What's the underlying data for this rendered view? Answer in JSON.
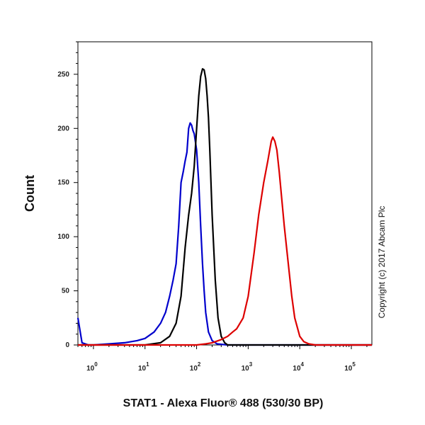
{
  "chart_data": {
    "type": "line",
    "title": "",
    "xlabel": "STAT1 - Alexa Fluor® 488 (530/30 BP)",
    "ylabel": "Count",
    "x_scale": "log",
    "xlim": [
      0.5,
      250000
    ],
    "ylim": [
      0,
      280
    ],
    "x_tick_labels": [
      {
        "base": "10",
        "exp": "0"
      },
      {
        "base": "10",
        "exp": "1"
      },
      {
        "base": "10",
        "exp": "2"
      },
      {
        "base": "10",
        "exp": "3"
      },
      {
        "base": "10",
        "exp": "4"
      },
      {
        "base": "10",
        "exp": "5"
      }
    ],
    "x_tick_values": [
      1,
      10,
      100,
      1000,
      10000,
      100000
    ],
    "y_ticks": [
      0,
      50,
      100,
      150,
      200,
      250
    ],
    "grid": false,
    "legend": "none",
    "series": [
      {
        "color": "#0000cc",
        "x": [
          0.5,
          0.6,
          0.8,
          1,
          2,
          4,
          7,
          10,
          15,
          20,
          25,
          30,
          35,
          40,
          45,
          50,
          55,
          60,
          65,
          70,
          75,
          80,
          85,
          90,
          100,
          110,
          120,
          130,
          140,
          150,
          170,
          200,
          250,
          400,
          1000,
          250000
        ],
        "y": [
          25,
          2,
          0,
          0,
          1,
          2,
          4,
          6,
          12,
          20,
          30,
          45,
          60,
          75,
          110,
          150,
          160,
          170,
          178,
          200,
          205,
          203,
          198,
          195,
          180,
          150,
          110,
          75,
          50,
          30,
          12,
          4,
          1,
          0,
          0,
          0
        ]
      },
      {
        "color": "#000000",
        "x": [
          0.5,
          5,
          10,
          20,
          30,
          40,
          50,
          60,
          70,
          80,
          90,
          100,
          110,
          120,
          130,
          140,
          150,
          160,
          170,
          180,
          200,
          230,
          260,
          300,
          350,
          400,
          250000
        ],
        "y": [
          0,
          0,
          0,
          2,
          8,
          20,
          45,
          90,
          120,
          140,
          165,
          200,
          230,
          248,
          255,
          254,
          246,
          230,
          210,
          180,
          120,
          60,
          25,
          8,
          2,
          0,
          0
        ]
      },
      {
        "color": "#dd0000",
        "x": [
          0.5,
          100,
          150,
          200,
          300,
          400,
          500,
          600,
          800,
          1000,
          1300,
          1600,
          2000,
          2400,
          2800,
          3000,
          3300,
          3600,
          4000,
          5000,
          6000,
          7000,
          8000,
          10000,
          12000,
          15000,
          20000,
          250000
        ],
        "y": [
          0,
          0,
          1,
          2,
          5,
          8,
          12,
          15,
          25,
          45,
          85,
          120,
          150,
          170,
          188,
          192,
          188,
          180,
          160,
          110,
          75,
          45,
          25,
          8,
          3,
          1,
          0,
          0
        ]
      }
    ]
  },
  "copyright": "Copyright (c) 2017 Abcam Plc"
}
